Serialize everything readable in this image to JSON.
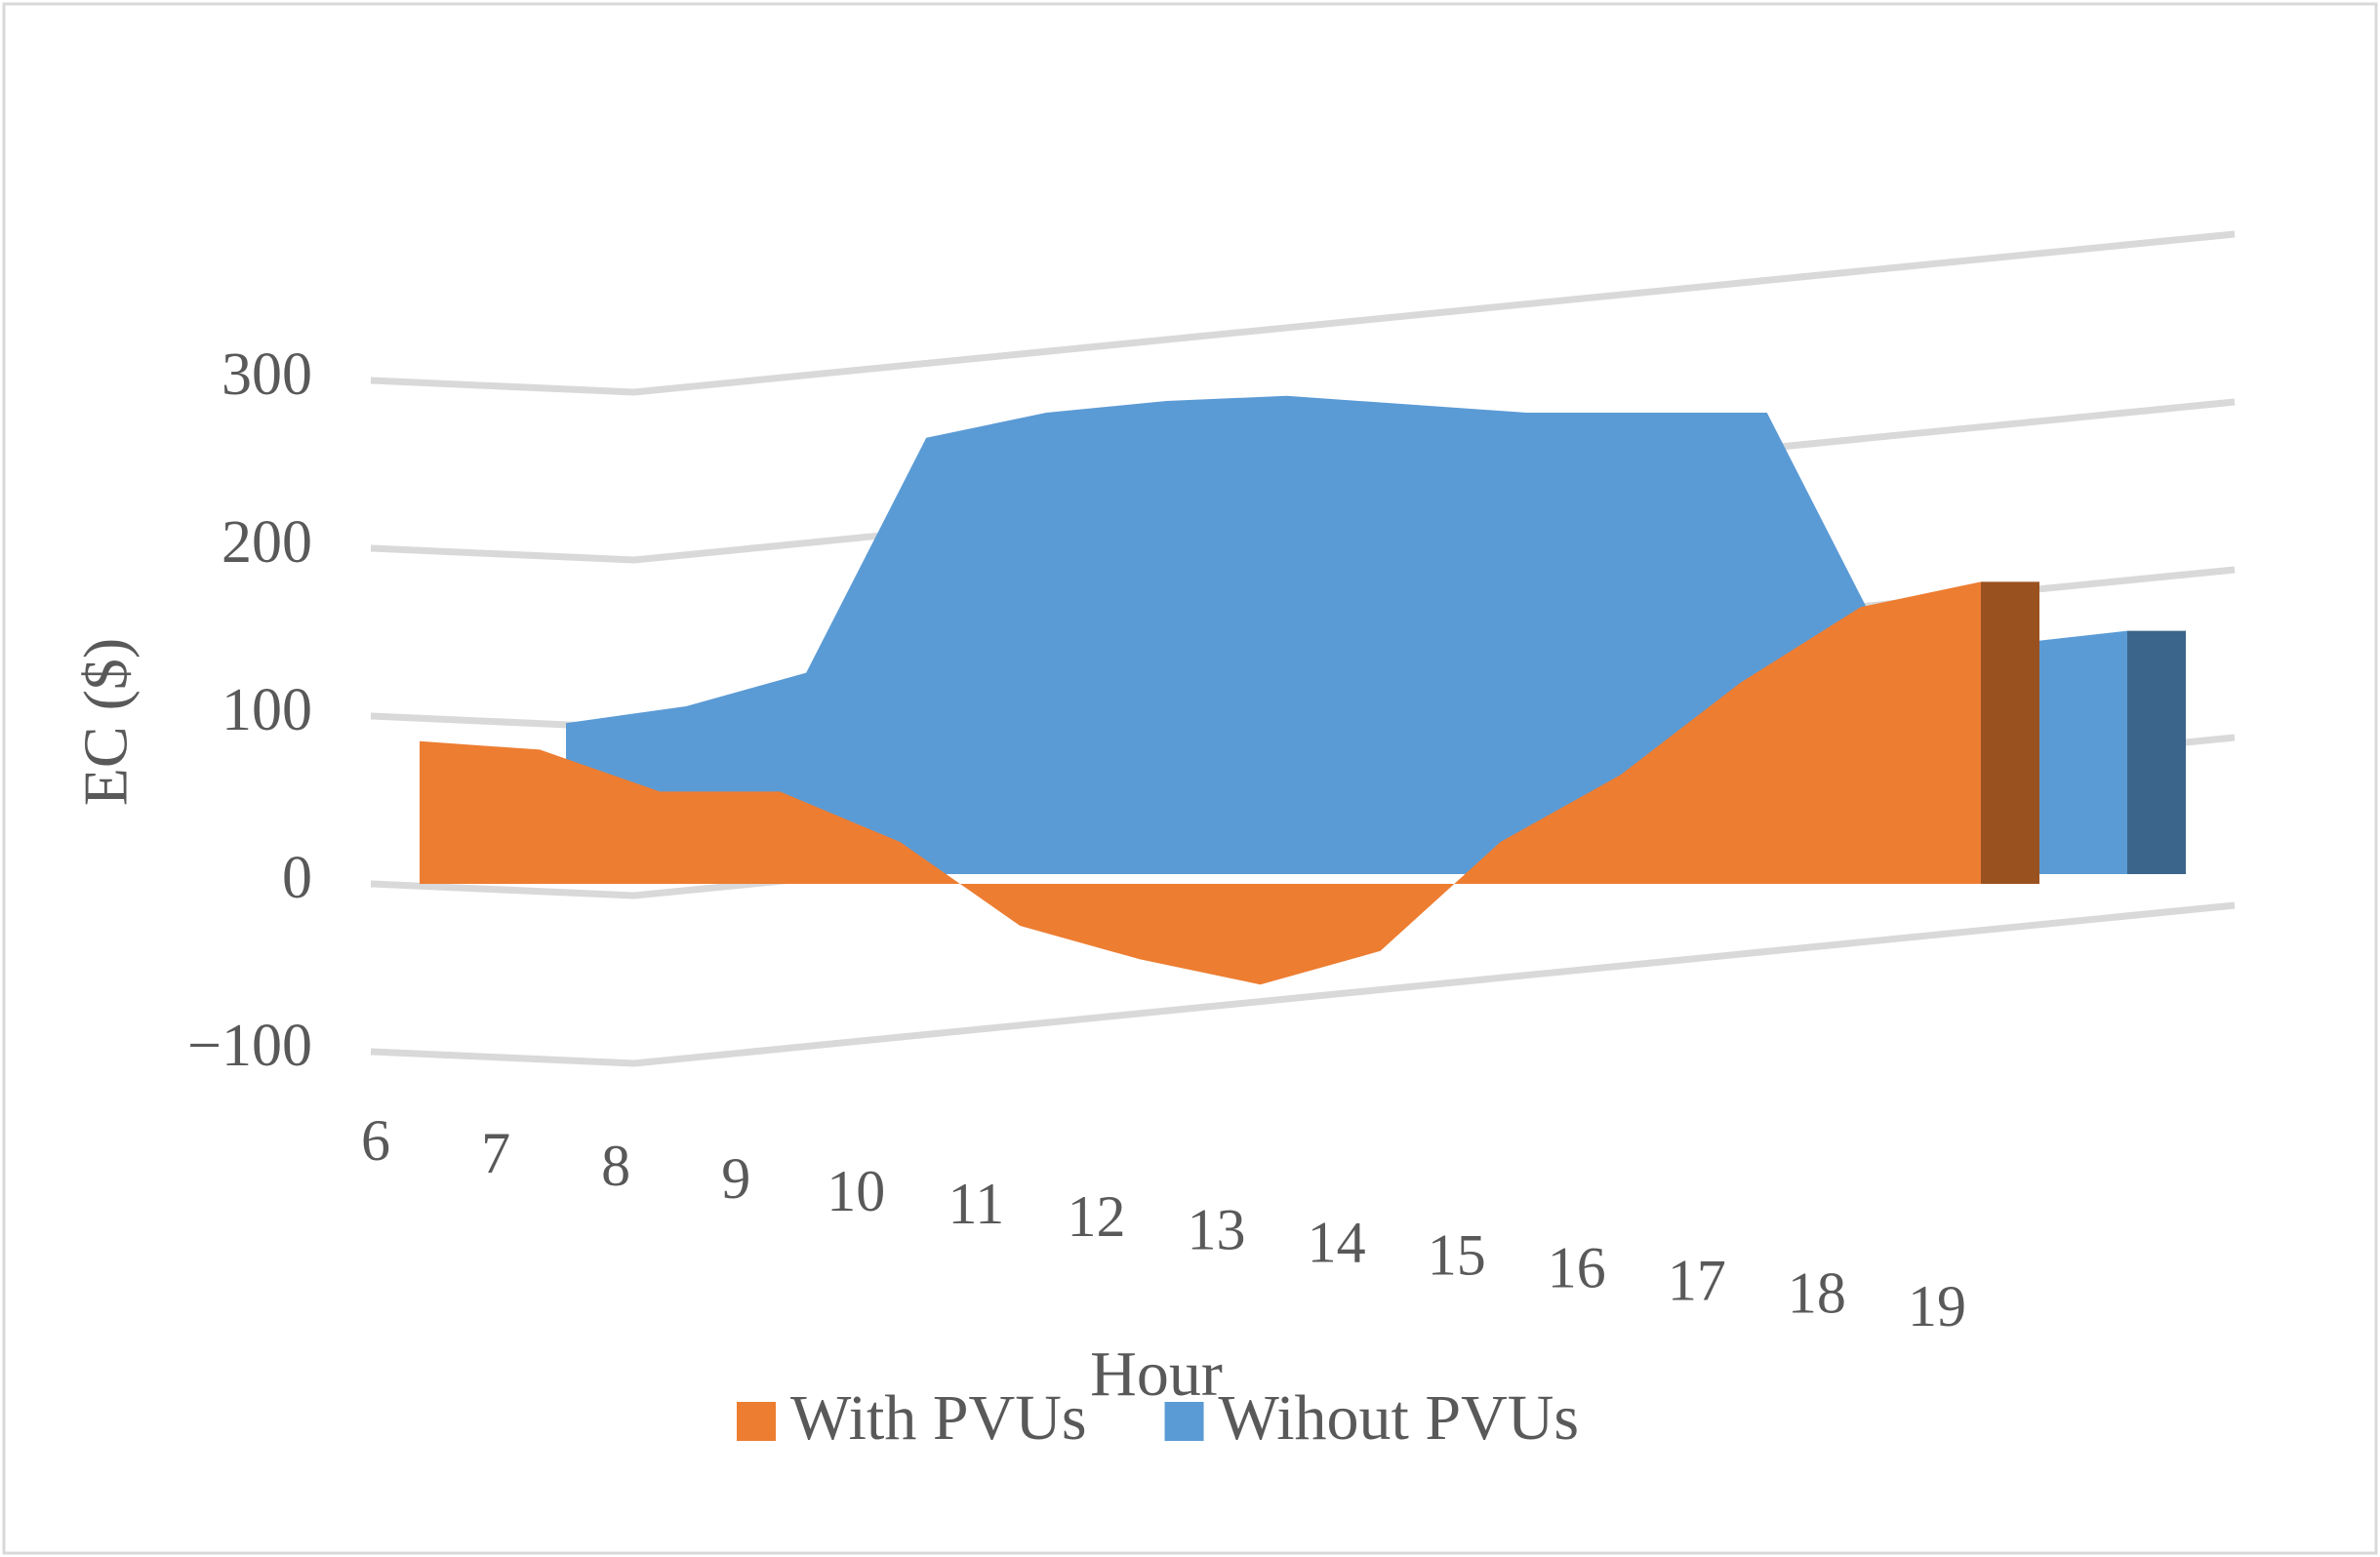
{
  "chart_data": {
    "type": "area3d",
    "x_label": "Hour",
    "y_label": "EC ($)",
    "categories": [
      "6",
      "7",
      "8",
      "9",
      "10",
      "11",
      "12",
      "13",
      "14",
      "15",
      "16",
      "17",
      "18",
      "19"
    ],
    "series": [
      {
        "name": "With PVUs",
        "color": "#ed7d31",
        "values": [
          85,
          80,
          55,
          55,
          25,
          -25,
          -45,
          -60,
          -40,
          25,
          65,
          120,
          165,
          180
        ]
      },
      {
        "name": "Wihout PVUs",
        "color": "#5b9bd5",
        "values": [
          90,
          100,
          120,
          260,
          275,
          282,
          285,
          280,
          275,
          275,
          275,
          135,
          137,
          145
        ]
      }
    ],
    "ylim": [
      -100,
      300
    ],
    "yticks": [
      {
        "value": -100,
        "label": "−100"
      },
      0,
      100,
      200,
      300
    ],
    "grid": true,
    "legend": "bottom"
  }
}
